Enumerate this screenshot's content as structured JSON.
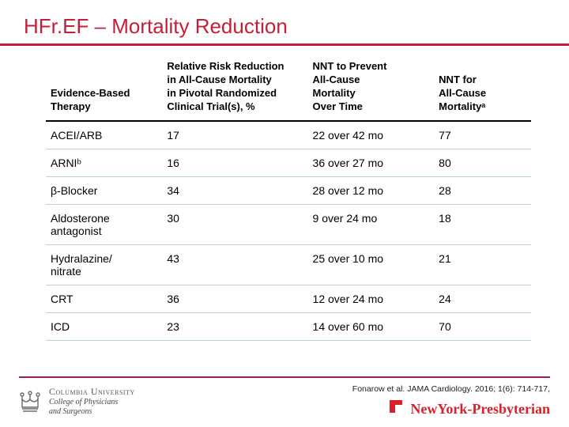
{
  "colors": {
    "title": "#c41e3a",
    "title_rule": "#c41e3a",
    "row_rule": "#b9d3e2",
    "footer_rule": "#9a1b5e",
    "cu_gray": "#6a6a6a",
    "nyp_red": "#d8212a",
    "text": "#000000"
  },
  "title": "HFr.EF – Mortality Reduction",
  "citation": "Fonarow et al. JAMA Cardiology. 2016; 1(6): 714-717,",
  "columbia": {
    "name": "Columbia University",
    "sub1": "College of Physicians",
    "sub2": "and Surgeons"
  },
  "nyp": {
    "name": "NewYork-Presbyterian",
    "mark": "⊐"
  },
  "table": {
    "headers": {
      "therapy": "Evidence-Based\nTherapy",
      "rrr": "Relative Risk Reduction\nin All-Cause Mortality\nin Pivotal Randomized\nClinical Trial(s), %",
      "nnt_time": "NNT to Prevent\nAll-Cause\nMortality\nOver Time",
      "nnt": "NNT for\nAll-Cause\nMortalityᵃ"
    },
    "rows": [
      {
        "therapy": "ACEI/ARB",
        "rrr": "17",
        "nnt_time": "22 over 42 mo",
        "nnt": "77"
      },
      {
        "therapy": "ARNIᵇ",
        "rrr": "16",
        "nnt_time": "36 over 27 mo",
        "nnt": "80"
      },
      {
        "therapy": "β-Blocker",
        "rrr": "34",
        "nnt_time": "28 over 12 mo",
        "nnt": "28"
      },
      {
        "therapy": "Aldosterone\nantagonist",
        "rrr": "30",
        "nnt_time": "9 over 24 mo",
        "nnt": "18"
      },
      {
        "therapy": "Hydralazine/\nnitrate",
        "rrr": "43",
        "nnt_time": "25 over 10 mo",
        "nnt": "21"
      },
      {
        "therapy": "CRT",
        "rrr": "36",
        "nnt_time": "12 over 24 mo",
        "nnt": "24"
      },
      {
        "therapy": "ICD",
        "rrr": "23",
        "nnt_time": "14 over 60 mo",
        "nnt": "70"
      }
    ]
  }
}
